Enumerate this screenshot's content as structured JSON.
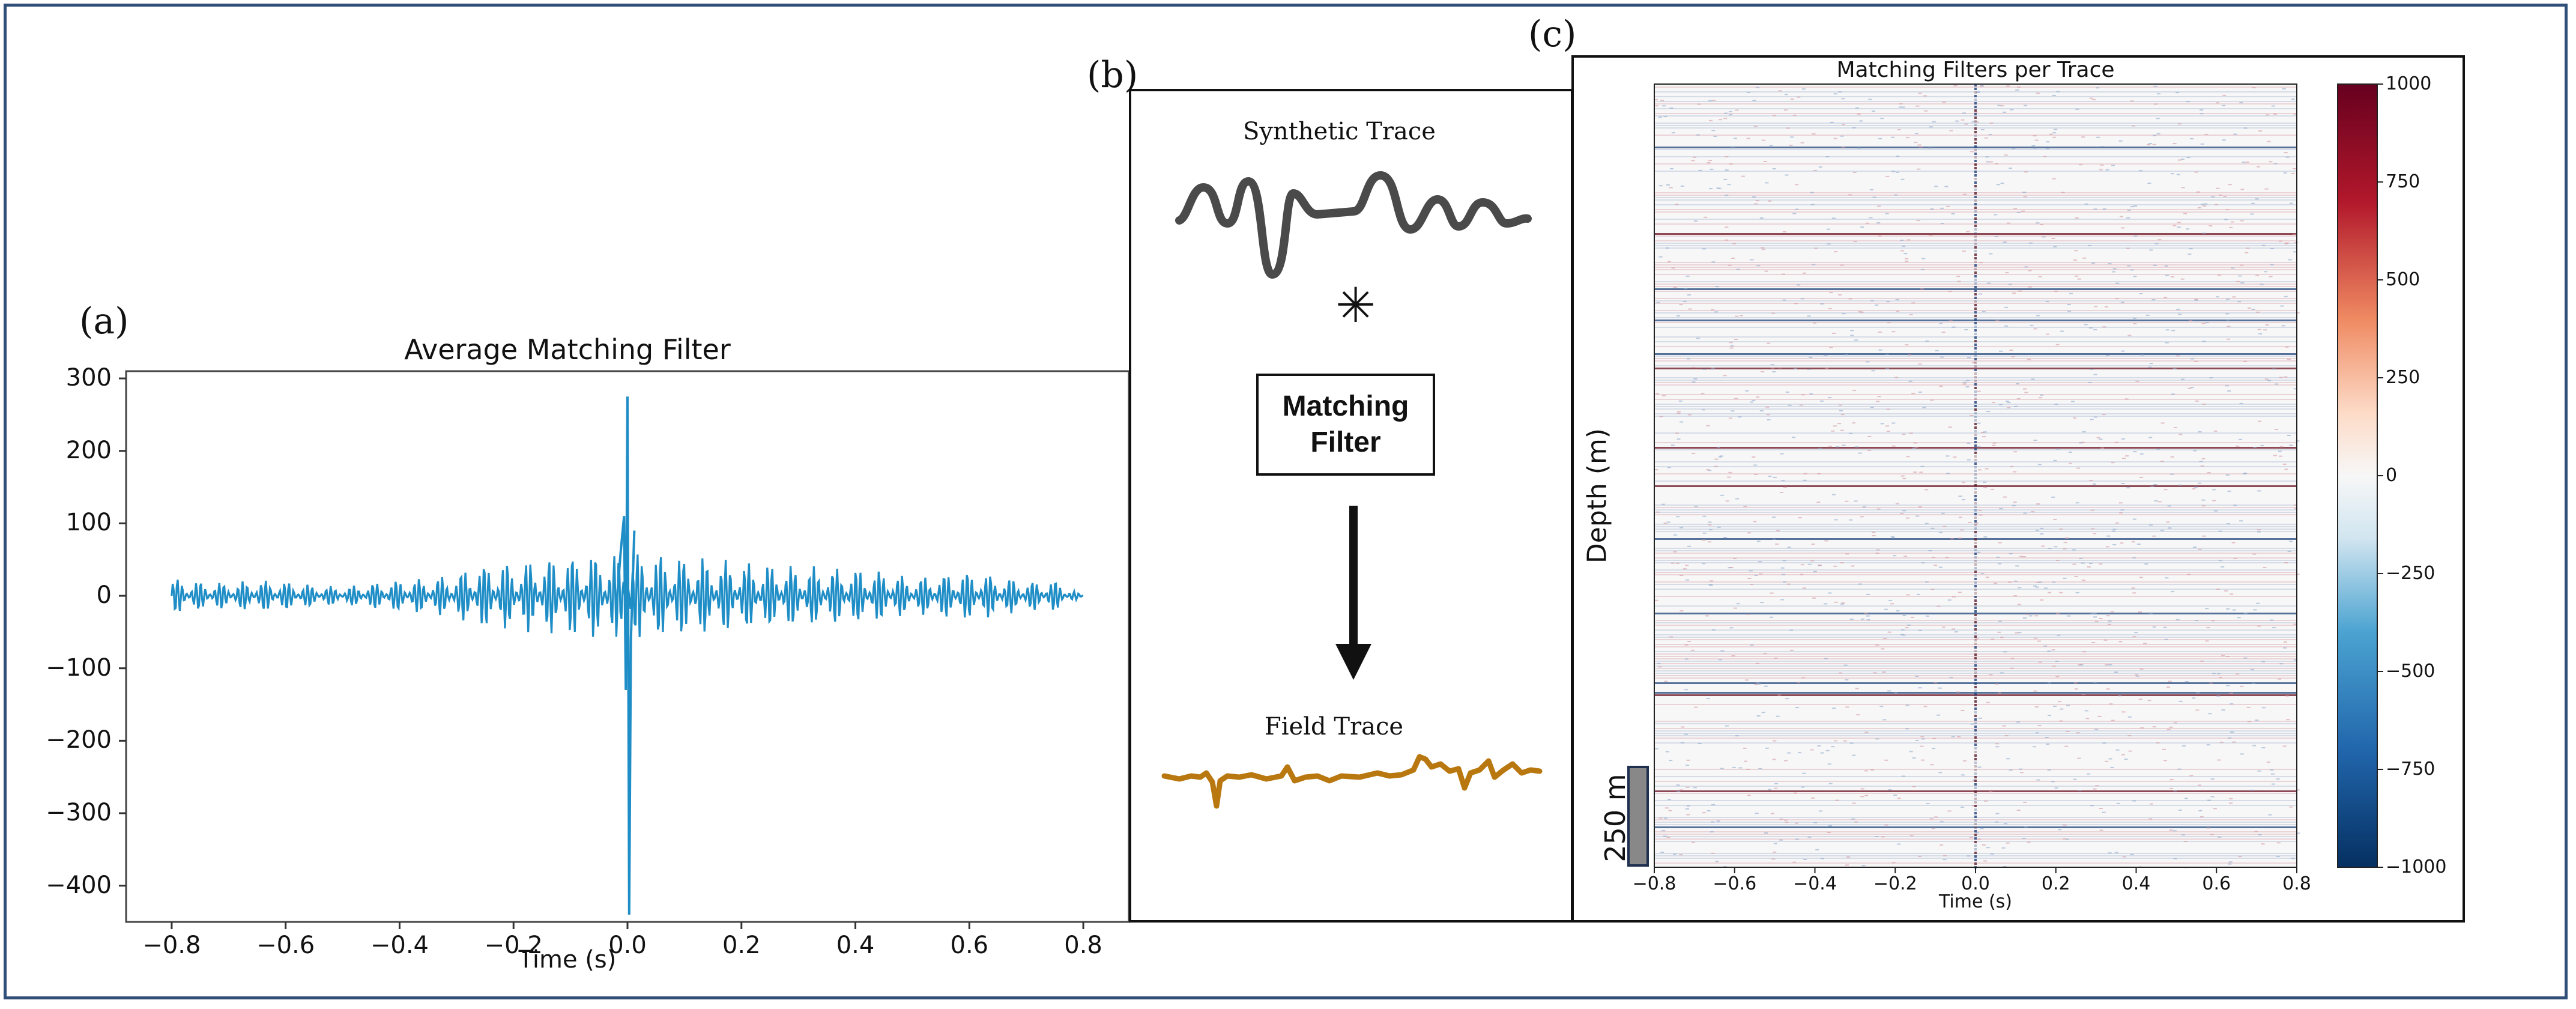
{
  "panels": {
    "a": {
      "label": "(a)"
    },
    "b": {
      "label": "(b)",
      "synthetic_label": "Synthetic Trace",
      "operator": "✳",
      "box_line1": "Matching",
      "box_line2": "Filter",
      "field_label": "Field Trace"
    },
    "c": {
      "label": "(c)",
      "depth_label": "Depth (m)",
      "scale_bar_label": "250 m"
    }
  },
  "colors": {
    "frame": "#2f4f78",
    "line": "#1f8dc6",
    "synthetic": "#4a4a4a",
    "field": "#b8780f",
    "scale_bar": "#888888"
  },
  "chart_data": [
    {
      "type": "line",
      "title": "Average Matching Filter",
      "xlabel": "Time (s)",
      "ylabel": "",
      "xlim": [
        -0.88,
        0.88
      ],
      "ylim": [
        -450,
        310
      ],
      "xticks": [
        -0.8,
        -0.6,
        -0.4,
        -0.2,
        0.0,
        0.2,
        0.4,
        0.6,
        0.8
      ],
      "xtick_labels": [
        "−0.8",
        "−0.6",
        "−0.4",
        "−0.2",
        "0.0",
        "0.2",
        "0.4",
        "0.6",
        "0.8"
      ],
      "yticks": [
        300,
        200,
        100,
        0,
        -100,
        -200,
        -300,
        -400
      ],
      "ytick_labels": [
        "300",
        "200",
        "100",
        "0",
        "−100",
        "−200",
        "−300",
        "−400"
      ],
      "series": [
        {
          "name": "average matching filter",
          "x": [
            -0.8,
            -0.75,
            -0.7,
            -0.65,
            -0.6,
            -0.55,
            -0.5,
            -0.45,
            -0.4,
            -0.35,
            -0.3,
            -0.25,
            -0.2,
            -0.15,
            -0.1,
            -0.05,
            -0.02,
            -0.01,
            0.0,
            0.005,
            0.01,
            0.02,
            0.05,
            0.1,
            0.15,
            0.2,
            0.25,
            0.3,
            0.35,
            0.4,
            0.45,
            0.5,
            0.55,
            0.6,
            0.65,
            0.7,
            0.75,
            0.8
          ],
          "y": [
            -25,
            20,
            -18,
            22,
            -20,
            15,
            -12,
            18,
            -22,
            25,
            -30,
            55,
            -45,
            60,
            -70,
            95,
            -55,
            110,
            275,
            -440,
            -130,
            80,
            -60,
            55,
            -70,
            65,
            -50,
            70,
            -45,
            40,
            -35,
            25,
            -30,
            35,
            -28,
            20,
            -22,
            0
          ]
        }
      ]
    },
    {
      "type": "heatmap",
      "title": "Matching Filters per Trace",
      "xlabel": "Time (s)",
      "ylabel": "Depth (m)",
      "xlim": [
        -0.8,
        0.8
      ],
      "xticks": [
        -0.8,
        -0.6,
        -0.4,
        -0.2,
        0.0,
        0.2,
        0.4,
        0.6,
        0.8
      ],
      "xtick_labels": [
        "−0.8",
        "−0.6",
        "−0.4",
        "−0.2",
        "0.0",
        "0.2",
        "0.4",
        "0.6",
        "0.8"
      ],
      "colorbar": {
        "min": -1000,
        "max": 1000,
        "ticks": [
          1000,
          750,
          500,
          250,
          0,
          -250,
          -500,
          -750,
          -1000
        ],
        "tick_labels": [
          "1000",
          "750",
          "500",
          "250",
          "0",
          "−250",
          "−500",
          "−750",
          "−1000"
        ],
        "colormap": "RdBu_r"
      }
    }
  ]
}
